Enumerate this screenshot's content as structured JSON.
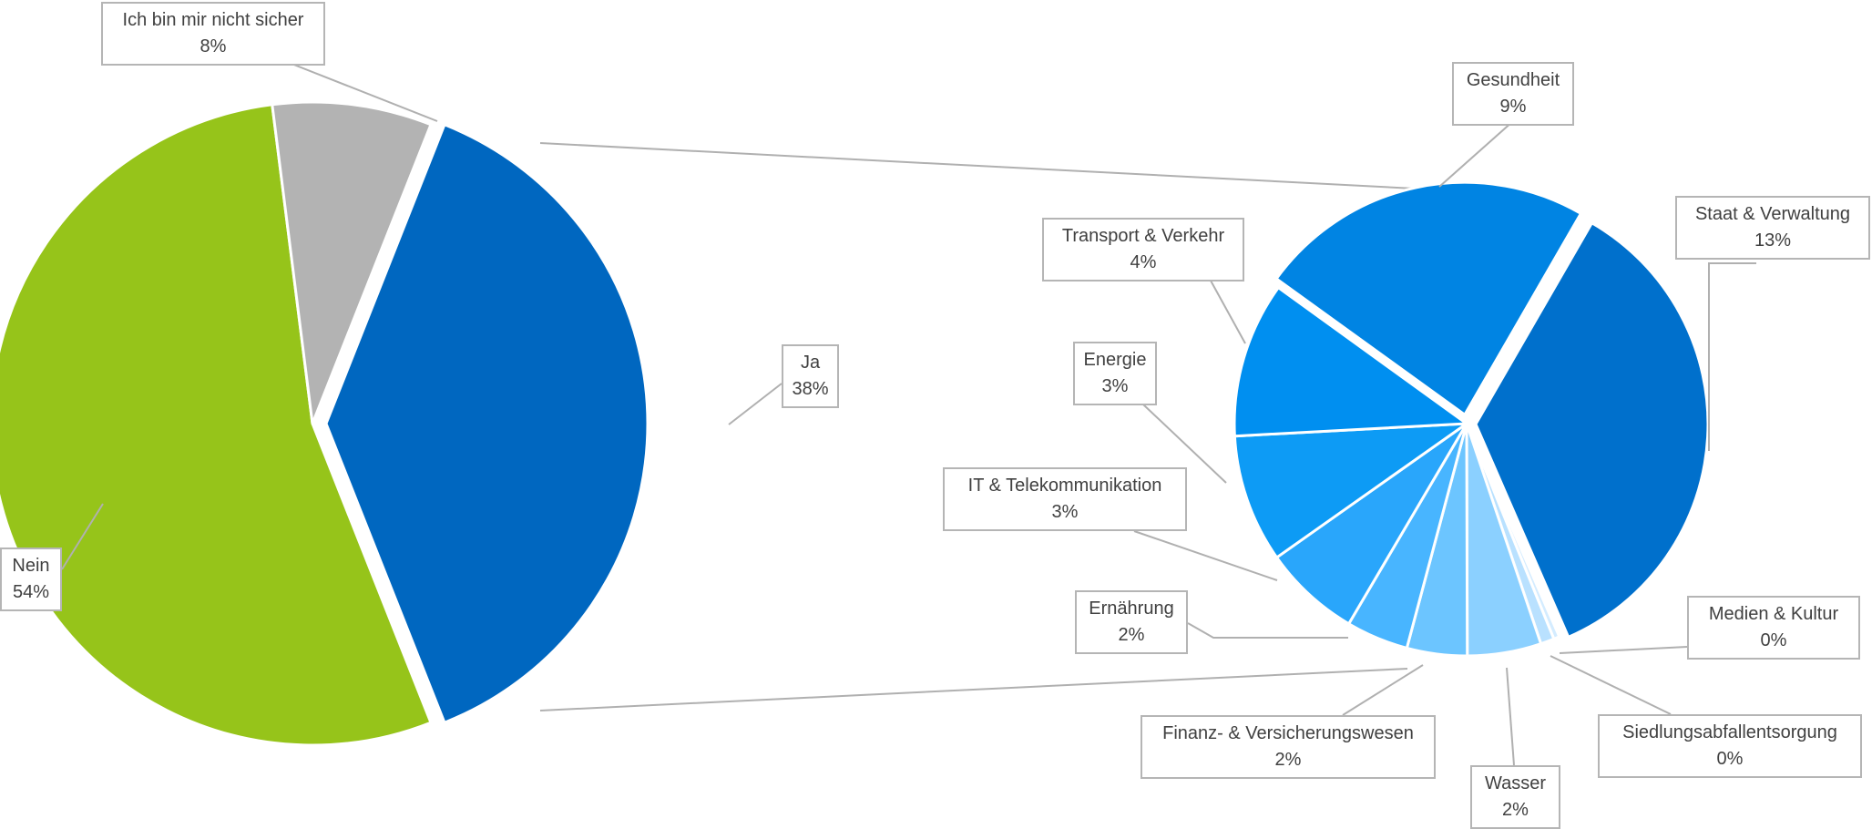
{
  "chart_data": [
    {
      "type": "pie",
      "name_id": "main",
      "slices": [
        {
          "label": "Ja",
          "value": 38,
          "value_label": "38%",
          "color": "#0067c0",
          "exploded": true
        },
        {
          "label": "Nein",
          "value": 54,
          "value_label": "54%",
          "color": "#96c41a",
          "exploded": false
        },
        {
          "label": "Ich bin mir nicht sicher",
          "value": 8,
          "value_label": "8%",
          "color": "#b3b3b3",
          "exploded": false
        }
      ]
    },
    {
      "type": "pie",
      "name_id": "breakdown-of-ja",
      "slices": [
        {
          "label": "Staat & Verwaltung",
          "value": 13,
          "value_label": "13%",
          "color": "#0070cc"
        },
        {
          "label": "Medien & Kultur",
          "value": 0.15,
          "value_label": "0%",
          "color": "#d4ecff"
        },
        {
          "label": "Siedlungsabfallentsorgung",
          "value": 0.35,
          "value_label": "0%",
          "color": "#b9e1ff"
        },
        {
          "label": "Wasser",
          "value": 1.9,
          "value_label": "2%",
          "color": "#8bd0ff"
        },
        {
          "label": "Finanz- & Versicherungswesen",
          "value": 1.55,
          "value_label": "2%",
          "color": "#6cc5ff"
        },
        {
          "label": "Ernährung",
          "value": 1.6,
          "value_label": "2%",
          "color": "#48b5ff"
        },
        {
          "label": "IT & Telekommunikation",
          "value": 2.5,
          "value_label": "3%",
          "color": "#29a6fb"
        },
        {
          "label": "Energie",
          "value": 3.3,
          "value_label": "3%",
          "color": "#0d9bf5"
        },
        {
          "label": "Transport & Verkehr",
          "value": 4.0,
          "value_label": "4%",
          "color": "#008ff0"
        },
        {
          "label": "Gesundheit",
          "value": 8.65,
          "value_label": "9%",
          "color": "#0084e3"
        }
      ]
    }
  ]
}
